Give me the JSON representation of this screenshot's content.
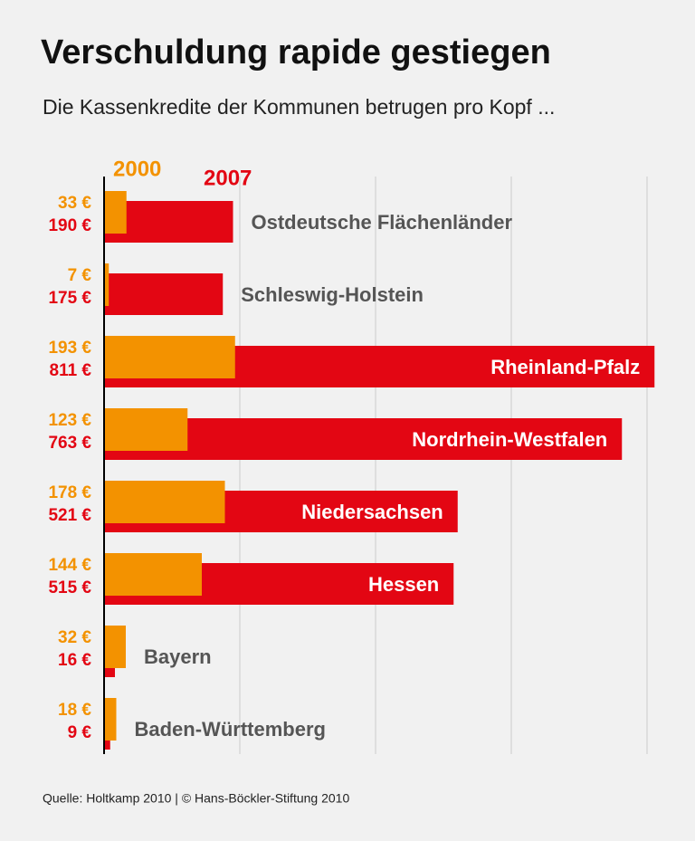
{
  "chart_data": {
    "type": "bar",
    "orientation": "horizontal",
    "title": "Verschuldung rapide gestiegen",
    "subtitle": "Die Kassenkredite der Kommunen betrugen pro Kopf  ...",
    "source": "Quelle: Holtkamp 2010 | © Hans-Böckler-Stiftung 2010",
    "categories": [
      "Ostdeutsche Flächenländer",
      "Schleswig-Holstein",
      "Rheinland-Pfalz",
      "Nordrhein-Westfalen",
      "Niedersachsen",
      "Hessen",
      "Bayern",
      "Baden-Württemberg"
    ],
    "series": [
      {
        "name": "2000",
        "color": "#f39200",
        "values": [
          33,
          7,
          193,
          123,
          178,
          144,
          32,
          18
        ],
        "value_labels": [
          "33 €",
          "7 €",
          "193 €",
          "123 €",
          "178 €",
          "144 €",
          "32 €",
          "18 €"
        ]
      },
      {
        "name": "2007",
        "color": "#e30613",
        "values": [
          190,
          175,
          811,
          763,
          521,
          515,
          16,
          9
        ],
        "value_labels": [
          "190 €",
          "175 €",
          "811 €",
          "763 €",
          "521 €",
          "515 €",
          "16 €",
          "9 €"
        ]
      }
    ],
    "xlim": [
      0,
      800
    ],
    "xticks": [
      0,
      200,
      400,
      600,
      800
    ],
    "grid": true
  }
}
